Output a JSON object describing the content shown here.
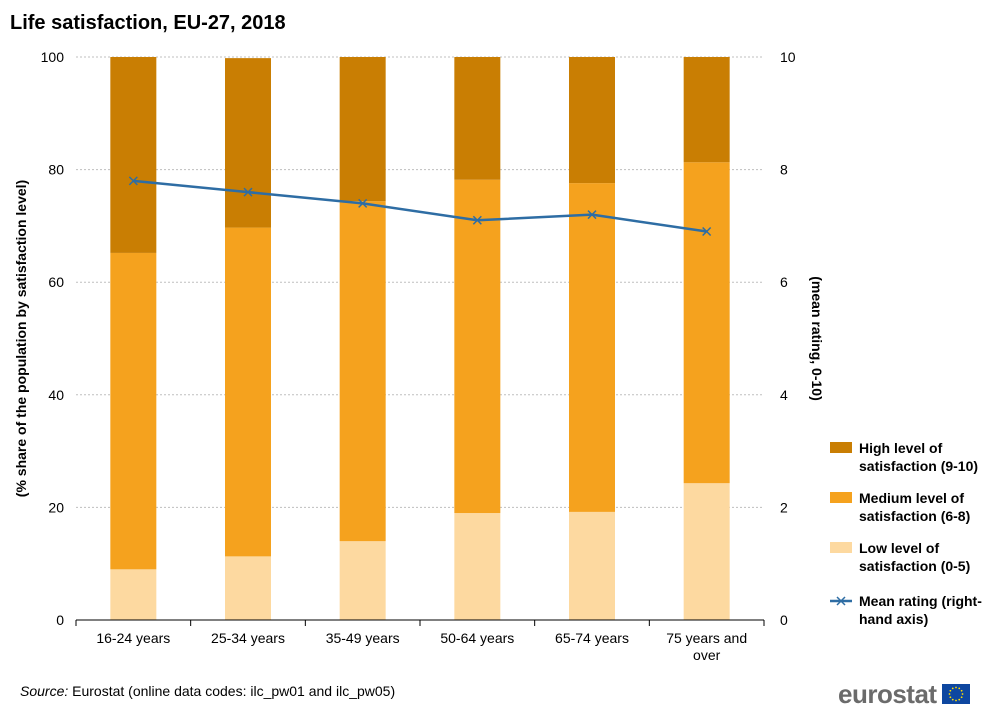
{
  "chart_data": {
    "type": "bar",
    "stacked": true,
    "title": "Life satisfaction, EU-27, 2018",
    "categories": [
      "16-24 years",
      "25-34 years",
      "35-49 years",
      "50-64 years",
      "65-74 years",
      "75 years and over"
    ],
    "category_lines": [
      [
        "16-24 years"
      ],
      [
        "25-34 years"
      ],
      [
        "35-49 years"
      ],
      [
        "50-64 years"
      ],
      [
        "65-74 years"
      ],
      [
        "75 years and",
        "over"
      ]
    ],
    "series": [
      {
        "name": "Low level of satisfaction (0-5)",
        "name_lines": [
          "Low level of",
          "satisfaction (0-5)"
        ],
        "color": "#fdd9a0",
        "values": [
          9.0,
          11.3,
          14.0,
          19.0,
          19.2,
          24.3
        ]
      },
      {
        "name": "Medium level of satisfaction (6-8)",
        "name_lines": [
          "Medium level of",
          "satisfaction (6-8)"
        ],
        "color": "#f5a21e",
        "values": [
          56.2,
          58.4,
          60.4,
          59.2,
          58.4,
          57.0
        ]
      },
      {
        "name": "High level of satisfaction (9-10)",
        "name_lines": [
          "High level of",
          "satisfaction (9-10)"
        ],
        "color": "#c97e03",
        "values": [
          34.8,
          30.1,
          25.6,
          21.8,
          22.4,
          18.7
        ]
      }
    ],
    "line_series": {
      "name": "Mean rating (right-hand axis)",
      "name_lines": [
        "Mean rating (right-",
        "hand axis)"
      ],
      "color": "#2e6da4",
      "axis": "right",
      "values": [
        7.8,
        7.6,
        7.4,
        7.1,
        7.2,
        6.9
      ]
    },
    "ylabel": "(% share of the population by satisfaction level)",
    "ylabel_right": "(mean rating, 0-10)",
    "ylim": [
      0,
      100
    ],
    "ylim_right": [
      0,
      10
    ],
    "yticks": [
      0,
      20,
      40,
      60,
      80,
      100
    ],
    "yticks_right": [
      0,
      2,
      4,
      6,
      8,
      10
    ],
    "grid": true,
    "legend_position": "right"
  },
  "source": {
    "label": "Source:",
    "text": "Eurostat (online data codes: ilc_pw01 and ilc_pw05)"
  },
  "brand": {
    "name": "eurostat"
  }
}
